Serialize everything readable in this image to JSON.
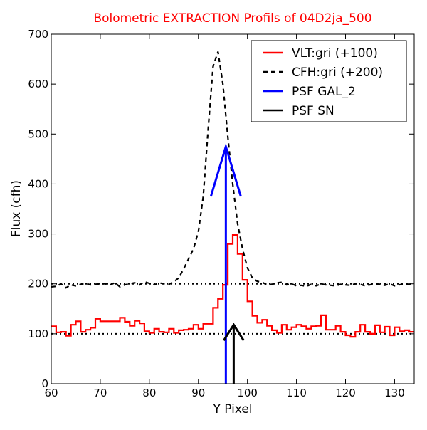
{
  "chart_data": {
    "type": "line",
    "title": "Bolometric EXTRACTION Profils of 04D2ja_500",
    "title_color": "#ff0000",
    "xlabel": "Y Pixel",
    "ylabel": "Flux (cfh)",
    "xlim": [
      60,
      134
    ],
    "ylim": [
      0,
      700
    ],
    "xticks": [
      60,
      70,
      80,
      90,
      100,
      110,
      120,
      130
    ],
    "yticks": [
      0,
      100,
      200,
      300,
      400,
      500,
      600,
      700
    ],
    "legend_position": "top-right",
    "reference_lines": [
      {
        "y": 100,
        "color": "#000000",
        "style": "dotted"
      },
      {
        "y": 200,
        "color": "#000000",
        "style": "dotted"
      }
    ],
    "series": [
      {
        "name": "VLT:gri (+100)",
        "color": "#ff0000",
        "style": "steps",
        "x": [
          60,
          61,
          62,
          63,
          64,
          65,
          66,
          67,
          68,
          69,
          70,
          71,
          72,
          73,
          74,
          75,
          76,
          77,
          78,
          79,
          80,
          81,
          82,
          83,
          84,
          85,
          86,
          87,
          88,
          89,
          90,
          91,
          92,
          93,
          94,
          95,
          96,
          97,
          98,
          99,
          100,
          101,
          102,
          103,
          104,
          105,
          106,
          107,
          108,
          109,
          110,
          111,
          112,
          113,
          114,
          115,
          116,
          117,
          118,
          119,
          120,
          121,
          122,
          123,
          124,
          125,
          126,
          127,
          128,
          129,
          130,
          131,
          132,
          133
        ],
        "y": [
          115,
          103,
          104,
          96,
          118,
          125,
          104,
          108,
          112,
          130,
          125,
          125,
          125,
          125,
          132,
          124,
          116,
          126,
          121,
          105,
          102,
          110,
          104,
          103,
          110,
          102,
          107,
          108,
          110,
          118,
          110,
          120,
          120,
          152,
          170,
          198,
          280,
          298,
          260,
          208,
          165,
          136,
          122,
          128,
          116,
          107,
          102,
          118,
          108,
          113,
          118,
          115,
          110,
          115,
          116,
          137,
          108,
          108,
          116,
          104,
          97,
          94,
          104,
          118,
          104,
          100,
          117,
          103,
          114,
          97,
          113,
          105,
          107,
          104
        ]
      },
      {
        "name": "CFH:gri (+200)",
        "color": "#000000",
        "style": "dashed",
        "x": [
          60,
          61,
          62,
          63,
          64,
          65,
          66,
          67,
          68,
          69,
          70,
          71,
          72,
          73,
          74,
          75,
          76,
          77,
          78,
          79,
          80,
          81,
          82,
          83,
          84,
          85,
          86,
          87,
          88,
          89,
          90,
          91,
          92,
          93,
          94,
          95,
          96,
          97,
          98,
          99,
          100,
          101,
          102,
          103,
          104,
          105,
          106,
          107,
          108,
          109,
          110,
          111,
          112,
          113,
          114,
          115,
          116,
          117,
          118,
          119,
          120,
          121,
          122,
          123,
          124,
          125,
          126,
          127,
          128,
          129,
          130,
          131,
          132,
          133,
          134
        ],
        "y": [
          194,
          195,
          200,
          192,
          198,
          196,
          199,
          201,
          198,
          199,
          200,
          200,
          198,
          202,
          194,
          198,
          200,
          202,
          198,
          204,
          201,
          198,
          202,
          200,
          199,
          204,
          212,
          230,
          250,
          270,
          305,
          375,
          510,
          635,
          665,
          600,
          495,
          400,
          320,
          270,
          232,
          212,
          205,
          203,
          198,
          199,
          202,
          203,
          198,
          200,
          196,
          197,
          195,
          199,
          196,
          200,
          198,
          197,
          196,
          199,
          198,
          197,
          200,
          199,
          196,
          198,
          200,
          199,
          197,
          200,
          196,
          198,
          200,
          199,
          198
        ]
      }
    ],
    "annotations": [
      {
        "name": "PSF GAL_2",
        "type": "arrow",
        "color": "#0000ff",
        "x": 95.6,
        "y_from": 0,
        "y_to": 475
      },
      {
        "name": "PSF SN",
        "type": "arrow",
        "color": "#000000",
        "x": 97.2,
        "y_from": 0,
        "y_to": 118
      }
    ]
  }
}
